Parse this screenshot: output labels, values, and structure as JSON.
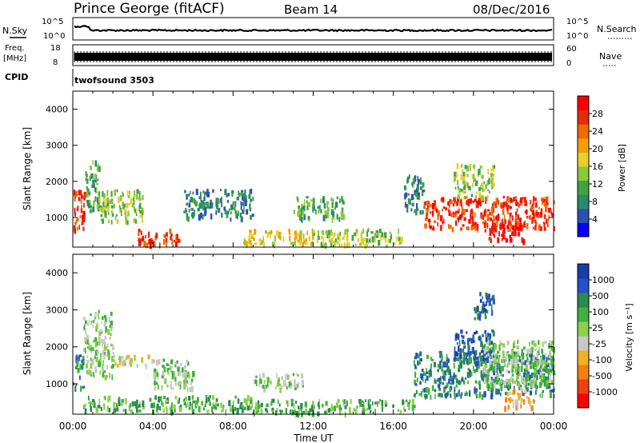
{
  "header": {
    "station": "Prince George (fitACF)",
    "beam": "Beam 14",
    "date": "08/Dec/2016"
  },
  "panel_labels": {
    "nsky": "N.Sky",
    "nsearch": "N.Search",
    "freq_line1": "Freq.",
    "freq_line2": "[MHz]",
    "nave": "Nave",
    "cpid": "CPID",
    "cpid_value": "twofsound 3503",
    "sky_top": "10^5",
    "sky_bottom": "10^0",
    "search_top": "10^5",
    "search_bottom": "10^0",
    "freq_top": "18",
    "freq_bottom": "8",
    "nave_top": "60",
    "nave_bottom": "0"
  },
  "chart_data": [
    {
      "type": "heatmap",
      "title": "",
      "xlabel": "",
      "ylabel": "Slant Range [km]",
      "xlim": [
        0,
        24
      ],
      "ylim": [
        180,
        4500
      ],
      "yticks": [
        "1000",
        "2000",
        "3000",
        "4000"
      ],
      "colorbar": {
        "label": "Power [dB]",
        "ticks": [
          "4",
          "8",
          "12",
          "16",
          "20",
          "24",
          "28"
        ],
        "colors": [
          "#0000ff",
          "#2c4fb4",
          "#2a8a6a",
          "#3fa340",
          "#8cc83c",
          "#e8d028",
          "#f5a000",
          "#f06a00",
          "#e62a10",
          "#ff0000"
        ]
      },
      "regions": [
        {
          "t0": 0.0,
          "t1": 0.6,
          "r0": 700,
          "r1": 1800,
          "level": 8
        },
        {
          "t0": 0.6,
          "t1": 1.3,
          "r0": 1200,
          "r1": 2600,
          "level": 3
        },
        {
          "t0": 1.3,
          "t1": 3.5,
          "r0": 900,
          "r1": 1800,
          "level": 4
        },
        {
          "t0": 3.2,
          "t1": 5.5,
          "r0": 300,
          "r1": 700,
          "level": 8
        },
        {
          "t0": 5.5,
          "t1": 9.0,
          "r0": 1000,
          "r1": 1800,
          "level": 2
        },
        {
          "t0": 8.5,
          "t1": 12.0,
          "r0": 300,
          "r1": 700,
          "level": 5
        },
        {
          "t0": 11.0,
          "t1": 13.5,
          "r0": 1000,
          "r1": 1600,
          "level": 3
        },
        {
          "t0": 12.0,
          "t1": 16.5,
          "r0": 250,
          "r1": 700,
          "level": 4
        },
        {
          "t0": 16.5,
          "t1": 17.5,
          "r0": 1200,
          "r1": 2200,
          "level": 2
        },
        {
          "t0": 17.5,
          "t1": 24.0,
          "r0": 700,
          "r1": 1600,
          "level": 8
        },
        {
          "t0": 19.0,
          "t1": 21.0,
          "r0": 1600,
          "r1": 2500,
          "level": 4
        },
        {
          "t0": 20.5,
          "t1": 22.5,
          "r0": 400,
          "r1": 900,
          "level": 9
        }
      ]
    },
    {
      "type": "heatmap",
      "title": "",
      "xlabel": "Time UT",
      "ylabel": "Slant Range [km]",
      "xlim": [
        0,
        24
      ],
      "ylim": [
        180,
        4500
      ],
      "xticks": [
        "00:00",
        "04:00",
        "08:00",
        "12:00",
        "16:00",
        "20:00",
        "00:00"
      ],
      "yticks": [
        "1000",
        "2000",
        "3000",
        "4000"
      ],
      "colorbar": {
        "label": "Velocity [m s⁻¹]",
        "ticks": [
          "1000",
          "500",
          "100",
          "25",
          "-25",
          "-100",
          "-500",
          "-1000"
        ],
        "colors": [
          "#1a3ca8",
          "#2850c8",
          "#2a8a50",
          "#40b040",
          "#8cd048",
          "#c8c8c8",
          "#f0b020",
          "#f58010",
          "#ee4010",
          "#ff0000"
        ]
      },
      "regions": [
        {
          "t0": 0.0,
          "t1": 0.5,
          "r0": 900,
          "r1": 1800,
          "level": 7
        },
        {
          "t0": 0.5,
          "t1": 2.0,
          "r0": 1200,
          "r1": 3000,
          "level": 5
        },
        {
          "t0": 2.0,
          "t1": 4.0,
          "r0": 1500,
          "r1": 1800,
          "level": 4
        },
        {
          "t0": 4.0,
          "t1": 6.0,
          "r0": 900,
          "r1": 1700,
          "level": 5
        },
        {
          "t0": 0.5,
          "t1": 9.0,
          "r0": 300,
          "r1": 700,
          "level": 6
        },
        {
          "t0": 9.0,
          "t1": 17.0,
          "r0": 250,
          "r1": 600,
          "level": 6
        },
        {
          "t0": 9.0,
          "t1": 11.5,
          "r0": 900,
          "r1": 1300,
          "level": 5
        },
        {
          "t0": 17.0,
          "t1": 24.0,
          "r0": 700,
          "r1": 1900,
          "level": 7
        },
        {
          "t0": 19.0,
          "t1": 21.0,
          "r0": 1600,
          "r1": 2500,
          "level": 8
        },
        {
          "t0": 20.0,
          "t1": 21.0,
          "r0": 2800,
          "r1": 3500,
          "level": 8
        },
        {
          "t0": 20.5,
          "t1": 24.0,
          "r0": 1000,
          "r1": 2200,
          "level": 5
        },
        {
          "t0": 21.5,
          "t1": 23.0,
          "r0": 400,
          "r1": 900,
          "level": 3
        }
      ]
    }
  ],
  "tick_labels": {
    "x": [
      "00:00",
      "04:00",
      "08:00",
      "12:00",
      "16:00",
      "20:00",
      "00:00"
    ],
    "xlabel": "Time UT"
  }
}
